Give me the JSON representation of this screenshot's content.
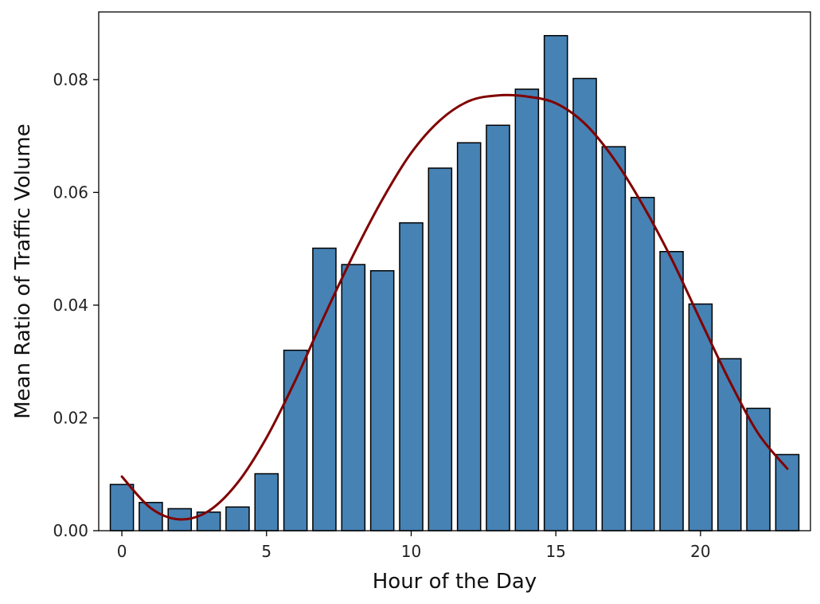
{
  "chart_data": {
    "type": "bar",
    "xlabel": "Hour of the Day",
    "ylabel": "Mean Ratio of Traffic Volume",
    "xlim": [
      -0.8,
      23.8
    ],
    "ylim": [
      0,
      0.092
    ],
    "x_ticks": [
      0,
      5,
      10,
      15,
      20
    ],
    "x_tick_labels": [
      "0",
      "5",
      "10",
      "15",
      "20"
    ],
    "y_ticks": [
      0,
      0.02,
      0.04,
      0.06,
      0.08
    ],
    "y_tick_labels": [
      "0.00",
      "0.02",
      "0.04",
      "0.06",
      "0.08"
    ],
    "grid": false,
    "bar_color": "#4682b4",
    "bar_edge_color": "#000000",
    "curve_color": "#800000",
    "categories": [
      0,
      1,
      2,
      3,
      4,
      5,
      6,
      7,
      8,
      9,
      10,
      11,
      12,
      13,
      14,
      15,
      16,
      17,
      18,
      19,
      20,
      21,
      22,
      23
    ],
    "values": [
      0.0082,
      0.005,
      0.0039,
      0.0033,
      0.0042,
      0.0101,
      0.032,
      0.0501,
      0.0472,
      0.0461,
      0.0546,
      0.0643,
      0.0688,
      0.0719,
      0.0783,
      0.0878,
      0.0802,
      0.0681,
      0.0591,
      0.0495,
      0.0402,
      0.0305,
      0.0217,
      0.0135
    ],
    "fit_curve": {
      "x": [
        0,
        1,
        2,
        3,
        4,
        5,
        6,
        7,
        8,
        9,
        10,
        11,
        12,
        13,
        14,
        15,
        16,
        17,
        18,
        19,
        20,
        21,
        22,
        23
      ],
      "y": [
        0.0096,
        0.004,
        0.002,
        0.0035,
        0.0085,
        0.0165,
        0.0267,
        0.0381,
        0.0489,
        0.0587,
        0.067,
        0.0728,
        0.0762,
        0.0772,
        0.077,
        0.0758,
        0.0722,
        0.066,
        0.0578,
        0.0482,
        0.0373,
        0.0266,
        0.0172,
        0.011
      ]
    }
  }
}
